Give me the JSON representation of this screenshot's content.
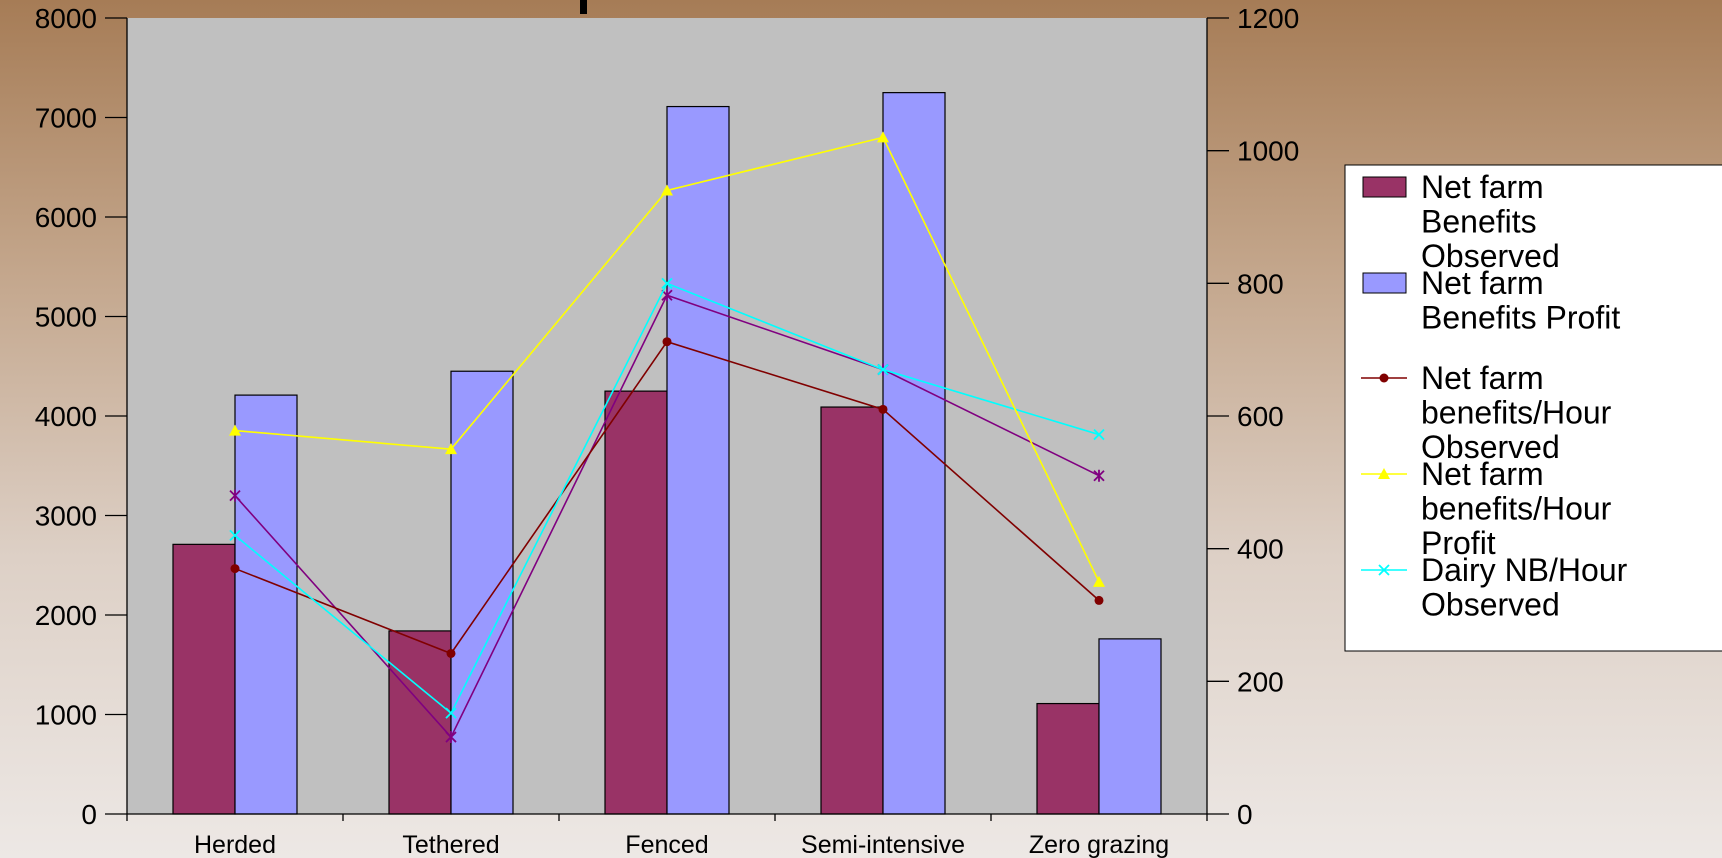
{
  "chart_data": {
    "type": "bar",
    "categories": [
      "Herded",
      "Tethered",
      "Fenced",
      "Semi-intensive",
      "Zero grazing"
    ],
    "y_left": {
      "min": 0,
      "max": 8000,
      "ticks": [
        0,
        1000,
        2000,
        3000,
        4000,
        5000,
        6000,
        7000,
        8000
      ]
    },
    "y_right": {
      "min": 0,
      "max": 1200,
      "ticks": [
        0,
        200,
        400,
        600,
        800,
        1000,
        1200
      ]
    },
    "series": [
      {
        "name": "Net farm Benefits Observed",
        "kind": "bar",
        "axis": "left",
        "color": "#993366",
        "values": [
          2710,
          1840,
          4250,
          4090,
          1110
        ]
      },
      {
        "name": "Net farm Benefits Profit",
        "kind": "bar",
        "axis": "left",
        "color": "#9999ff",
        "values": [
          4210,
          4450,
          7110,
          7250,
          1760
        ]
      },
      {
        "name": "Net farm benefits/Hour Observed",
        "kind": "line",
        "axis": "right",
        "color": "#800000",
        "marker": "circle",
        "values": [
          370,
          242,
          712,
          610,
          322
        ]
      },
      {
        "name": "Net farm benefits/Hour Profit",
        "kind": "line",
        "axis": "right",
        "color": "#ffff00",
        "marker": "triangle",
        "values": [
          578,
          550,
          940,
          1020,
          350
        ]
      },
      {
        "name": "Dairy NB/Hour Observed",
        "kind": "line",
        "axis": "right",
        "color": "#00ffff",
        "marker": "x",
        "values": [
          420,
          152,
          800,
          670,
          572
        ]
      },
      {
        "name": "",
        "kind": "line",
        "axis": "right",
        "color": "#800080",
        "marker": "star",
        "values": [
          480,
          116,
          782,
          670,
          510
        ]
      }
    ],
    "legend": {
      "position": "right",
      "entries": [
        {
          "series": 0,
          "lines": [
            "Net farm",
            "Benefits",
            "Observed"
          ]
        },
        {
          "series": 1,
          "lines": [
            "Net farm",
            "Benefits Profit"
          ]
        },
        {
          "series": 2,
          "lines": [
            "Net farm",
            "benefits/Hour",
            "Observed"
          ]
        },
        {
          "series": 3,
          "lines": [
            "Net farm",
            "benefits/Hour",
            "Profit"
          ]
        },
        {
          "series": 4,
          "lines": [
            "Dairy NB/Hour",
            "Observed"
          ]
        }
      ]
    },
    "plot_background": "#c0c0c0"
  }
}
